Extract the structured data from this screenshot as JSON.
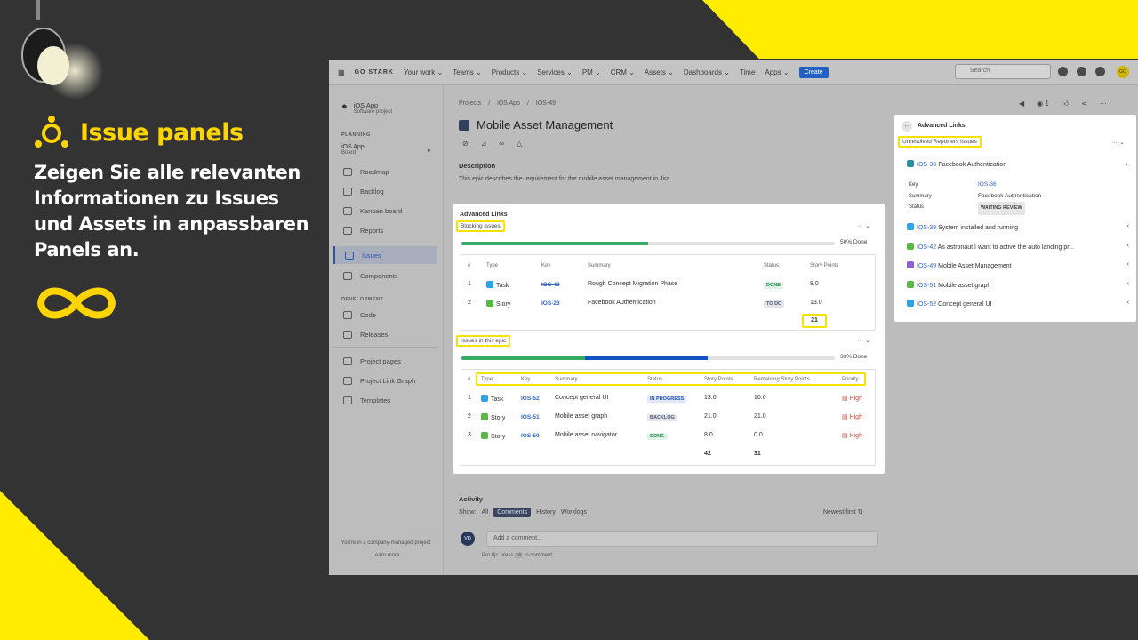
{
  "hero": {
    "title": "Issue panels",
    "text": "Zeigen Sie alle relevanten Informationen zu Issues und Assets in anpassbaren Panels an."
  },
  "colors": {
    "accent_yellow": "#ffec00",
    "jira_blue": "#2261c4",
    "done_green": "#38ab67",
    "background": "#333333"
  },
  "topbar": {
    "brand": "GO STARK",
    "items": [
      "Your work ⌄",
      "Teams ⌄",
      "Products ⌄",
      "Services ⌄",
      "PM ⌄",
      "CRM ⌄",
      "Assets ⌄",
      "Dashboards ⌄",
      "Time",
      "Apps ⌄"
    ],
    "create": "Create",
    "search_placeholder": "Search",
    "avatar": "GO"
  },
  "sidebar": {
    "project_name": "iOS App",
    "project_sub": "Software project",
    "planning_label": "PLANNING",
    "board_name": "iOS App",
    "board_sub": "Board",
    "planning_items": [
      "Roadmap",
      "Backlog",
      "Kanban board",
      "Reports",
      "Issues",
      "Components"
    ],
    "development_label": "DEVELOPMENT",
    "development_items": [
      "Code",
      "Releases"
    ],
    "other_items": [
      "Project pages",
      "Project Link Graph",
      "Templates"
    ],
    "footer": "You're in a company-managed project",
    "learn_more": "Learn more"
  },
  "issue": {
    "breadcrumbs": [
      "Projects",
      "/",
      "iOS App",
      "/",
      "IOS-49"
    ],
    "title": "Mobile Asset Management",
    "description_label": "Description",
    "description": "This epic describes the requirement for the mobile asset management in Jira.",
    "watchers": "1"
  },
  "advanced_links": {
    "title": "Advanced Links",
    "blocking": {
      "label": "Blocking issues",
      "progress_done": 0.5,
      "progress_text": "50% Done",
      "headers": [
        "#",
        "Type",
        "Key",
        "Summary",
        "Status",
        "Story Points"
      ],
      "rows": [
        {
          "n": "1",
          "type": "Task",
          "key": "IOS-40",
          "summary": "Rough Concept Migration Phase",
          "status": "DONE",
          "points": "8.0"
        },
        {
          "n": "2",
          "type": "Story",
          "key": "IOS-23",
          "summary": "Facebook Authentication",
          "status": "TO DO",
          "points": "13.0"
        }
      ],
      "total": "21"
    },
    "epic": {
      "label": "Issues in this epic",
      "progress_done": 0.33,
      "progress_in_progress": 0.33,
      "progress_text": "33% Done",
      "headers": [
        "#",
        "Type",
        "Key",
        "Summary",
        "Status",
        "Story Points",
        "Remaining Story Points",
        "Priority"
      ],
      "rows": [
        {
          "n": "1",
          "type": "Task",
          "key": "IOS-52",
          "summary": "Concept general UI",
          "status": "IN PROGRESS",
          "points": "13.0",
          "remaining": "10.0",
          "priority": "High"
        },
        {
          "n": "2",
          "type": "Story",
          "key": "IOS-51",
          "summary": "Mobile asset graph",
          "status": "BACKLOG",
          "points": "21.0",
          "remaining": "21.0",
          "priority": "High"
        },
        {
          "n": "3",
          "type": "Story",
          "key": "IOS-50",
          "summary": "Mobile asset navigator",
          "status": "DONE",
          "points": "8.0",
          "remaining": "0.0",
          "priority": "High"
        }
      ],
      "total_points": "42",
      "total_remaining": "31"
    }
  },
  "activity": {
    "title": "Activity",
    "show_label": "Show:",
    "tabs": [
      "All",
      "Comments",
      "History",
      "Worklogs"
    ],
    "sort": "Newest first ⇅",
    "avatar": "VD",
    "comment_placeholder": "Add a comment...",
    "tip_a": "Pro tip: press",
    "tip_key": "M",
    "tip_b": "to comment"
  },
  "right_panel": {
    "title": "Advanced Links",
    "section_label": "Unresolved Reporters Issues",
    "expanded": {
      "key": "IOS-36",
      "summary": "Facebook Authentication",
      "fields": [
        {
          "label": "Key",
          "value": "IOS-36"
        },
        {
          "label": "Summary",
          "value": "Facebook Authentication"
        },
        {
          "label": "Status",
          "value": "WAITING REVIEW"
        }
      ]
    },
    "items": [
      {
        "key": "IOS-39",
        "summary": "System installed and running",
        "type": "task"
      },
      {
        "key": "IOS-42",
        "summary": "As astronaut I want to active the auto landing pr...",
        "type": "story"
      },
      {
        "key": "IOS-49",
        "summary": "Mobile Asset Management",
        "type": "epic"
      },
      {
        "key": "IOS-51",
        "summary": "Mobile asset graph",
        "type": "story"
      },
      {
        "key": "IOS-52",
        "summary": "Concept general UI",
        "type": "task"
      }
    ]
  }
}
